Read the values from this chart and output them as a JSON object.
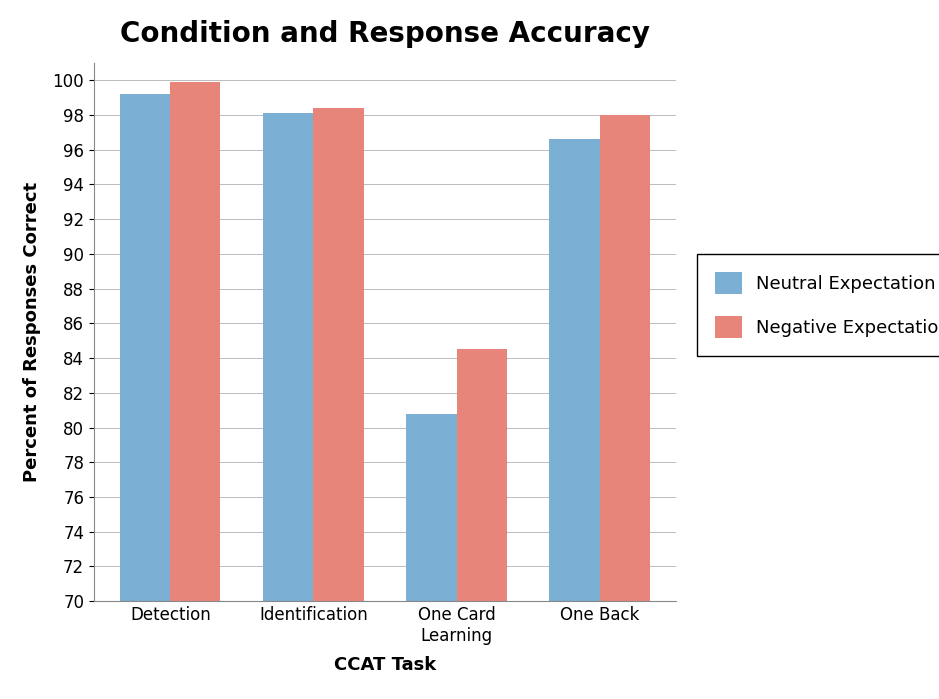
{
  "title": "Condition and Response Accuracy",
  "xlabel": "CCAT Task",
  "ylabel": "Percent of Responses Correct",
  "categories": [
    "Detection",
    "Identification",
    "One Card\nLearning",
    "One Back"
  ],
  "neutral_values": [
    99.2,
    98.1,
    80.8,
    96.6
  ],
  "negative_values": [
    99.9,
    98.4,
    84.5,
    98.0
  ],
  "neutral_color": "#7BAFD4",
  "negative_color": "#E8857A",
  "ylim": [
    70,
    101
  ],
  "yticks": [
    70,
    72,
    74,
    76,
    78,
    80,
    82,
    84,
    86,
    88,
    90,
    92,
    94,
    96,
    98,
    100
  ],
  "legend_labels": [
    "Neutral Expectation",
    "Negative Expectation"
  ],
  "title_fontsize": 20,
  "label_fontsize": 13,
  "tick_fontsize": 12,
  "legend_fontsize": 13,
  "bar_width": 0.35,
  "background_color": "#ffffff",
  "grid_color": "#bbbbbb"
}
